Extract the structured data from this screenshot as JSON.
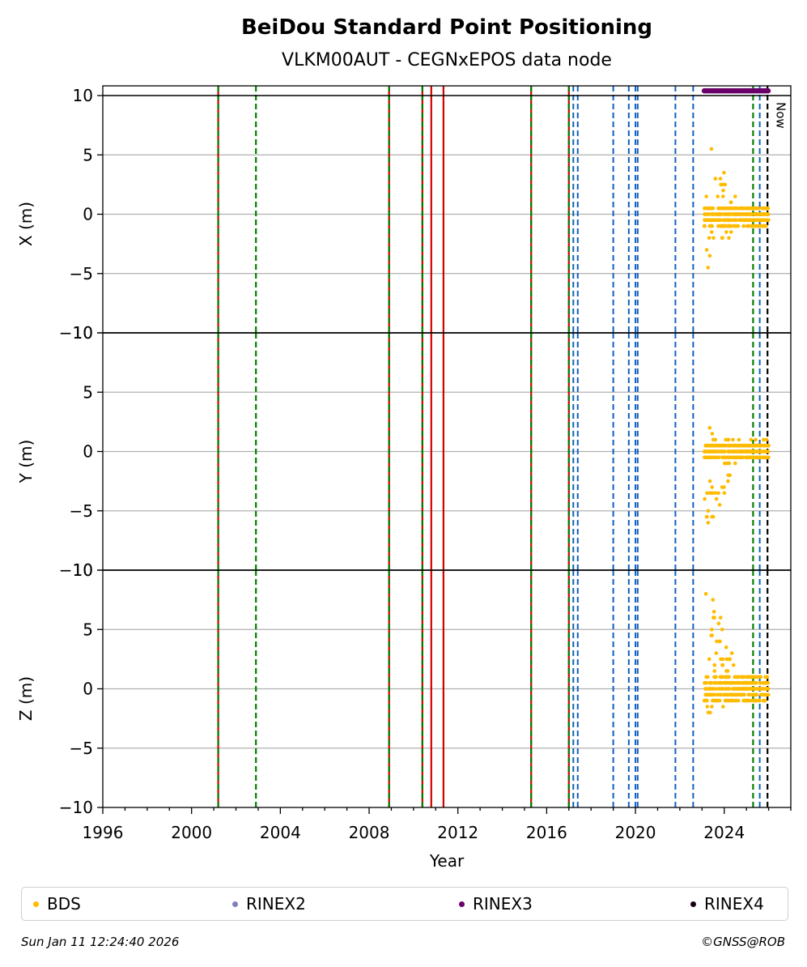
{
  "chart_data": {
    "type": "scatter",
    "title": "BeiDou Standard Point Positioning",
    "subtitle": "VLKM00AUT - CEGNxEPOS data node",
    "xlabel": "Year",
    "xlim": [
      1996,
      2027
    ],
    "xticks": [
      "1996",
      "2000",
      "2004",
      "2008",
      "2012",
      "2016",
      "2020",
      "2024"
    ],
    "xtick_values": [
      1996,
      2000,
      2004,
      2008,
      2012,
      2016,
      2020,
      2024
    ],
    "now_label": "Now",
    "now_x": 2026.0,
    "grid": "horizontal",
    "panels": [
      {
        "ylabel": "X (m)",
        "ylim": [
          -10,
          10
        ],
        "yticks": [
          "10",
          "5",
          "0",
          "−5",
          "−10"
        ]
      },
      {
        "ylabel": "Y (m)",
        "ylim": [
          -10,
          10
        ],
        "yticks": [
          "10",
          "5",
          "0",
          "−5",
          "−10"
        ]
      },
      {
        "ylabel": "Z (m)",
        "ylim": [
          -10,
          10
        ],
        "yticks": [
          "10",
          "5",
          "0",
          "−5",
          "−10"
        ]
      }
    ],
    "event_lines": {
      "red_green": [
        2001.2,
        2008.9,
        2010.4,
        2015.3,
        2017.0
      ],
      "green": [
        2002.9,
        2025.3
      ],
      "red": [
        2010.8,
        2011.35
      ],
      "blue": [
        2017.2,
        2017.4,
        2019.0,
        2019.7,
        2020.0,
        2020.1,
        2021.8,
        2022.6,
        2025.6
      ],
      "black": [
        2025.95
      ]
    },
    "series": [
      {
        "name": "BDS",
        "color": "#FFBB00",
        "x_range": [
          2023.1,
          2026.0
        ],
        "panels": [
          {
            "core": [
              -1.0,
              0.5
            ],
            "scatter": [
              -5.0,
              8.0
            ]
          },
          {
            "core": [
              -0.5,
              0.8
            ],
            "scatter": [
              -7.5,
              2.2
            ]
          },
          {
            "core": [
              -1.0,
              1.0
            ],
            "scatter": [
              -3.0,
              10.0
            ]
          }
        ]
      },
      {
        "name": "RINEX2",
        "color": "#7F7FBF"
      },
      {
        "name": "RINEX3",
        "color": "#6A006A",
        "x_range": [
          2023.1,
          2026.0
        ],
        "y": 10.4
      },
      {
        "name": "RINEX4",
        "color": "#1A0014"
      }
    ]
  },
  "footer": {
    "timestamp": "Sun Jan 11 12:24:40 2026",
    "copyright": "©GNSS@ROB"
  }
}
